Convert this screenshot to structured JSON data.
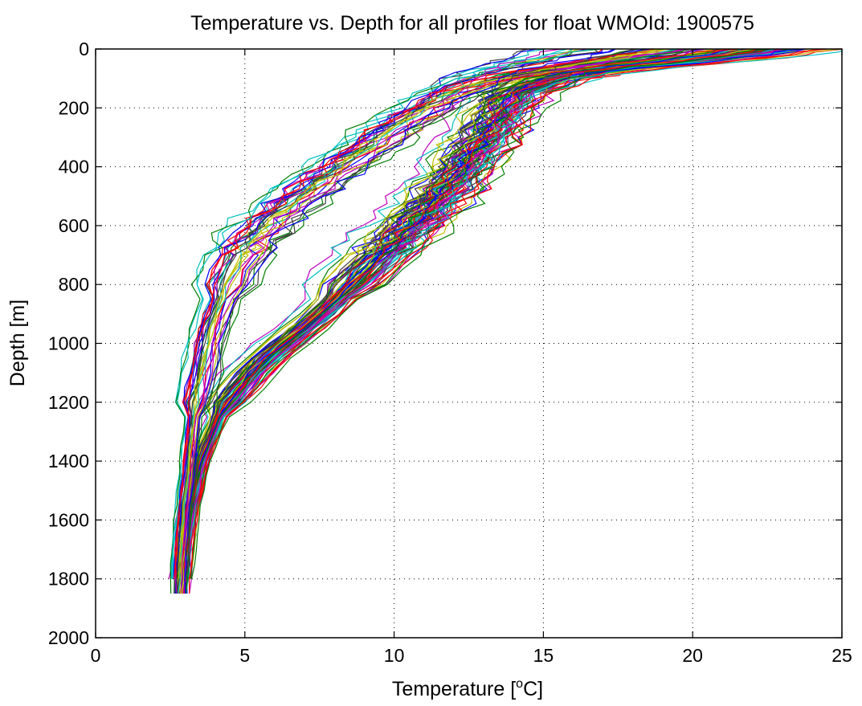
{
  "chart_data": {
    "type": "line",
    "title": "Temperature vs. Depth for all profiles for float WMOId: 1900575",
    "xlabel_main": "Temperature [",
    "xlabel_sup": "o",
    "xlabel_tail": "C]",
    "ylabel": "Depth [m]",
    "xlim": [
      0,
      25
    ],
    "ylim": [
      0,
      2000
    ],
    "y_reversed": true,
    "grid": true,
    "x_ticks": [
      0,
      5,
      10,
      15,
      20,
      25
    ],
    "y_ticks": [
      0,
      200,
      400,
      600,
      800,
      1000,
      1200,
      1400,
      1600,
      1800,
      2000
    ],
    "palette": [
      "#0000ff",
      "#007f00",
      "#ff0000",
      "#00bfbf",
      "#bf00bf",
      "#bfbf00",
      "#3f3f3f"
    ],
    "profile_count": 120,
    "profile_groups": [
      {
        "weight": 0.72,
        "depth": [
          0,
          20,
          40,
          60,
          80,
          100,
          150,
          200,
          250,
          300,
          350,
          400,
          450,
          500,
          550,
          600,
          650,
          700,
          750,
          800,
          850,
          900,
          950,
          1000,
          1050,
          1100,
          1150,
          1200,
          1250,
          1300,
          1350,
          1400,
          1450,
          1500,
          1550,
          1600,
          1650,
          1700,
          1750,
          1800,
          1850
        ],
        "temperature": [
          22.0,
          21.0,
          19.5,
          17.5,
          16.0,
          15.2,
          14.0,
          13.6,
          13.3,
          13.0,
          12.6,
          12.3,
          11.9,
          11.5,
          11.0,
          10.5,
          10.0,
          9.5,
          9.0,
          8.5,
          8.0,
          7.5,
          6.9,
          6.3,
          5.7,
          5.2,
          4.8,
          4.4,
          4.1,
          3.9,
          3.7,
          3.5,
          3.4,
          3.3,
          3.2,
          3.1,
          3.05,
          3.0,
          2.95,
          2.9,
          2.88
        ]
      },
      {
        "weight": 0.28,
        "depth": [
          0,
          20,
          40,
          60,
          80,
          100,
          150,
          200,
          250,
          300,
          350,
          400,
          450,
          500,
          550,
          600,
          650,
          700,
          750,
          800,
          850,
          900,
          950,
          1000,
          1050,
          1100,
          1150,
          1200,
          1250,
          1300,
          1350,
          1400,
          1450,
          1500,
          1550,
          1600,
          1650,
          1700,
          1750,
          1800,
          1850
        ],
        "temperature": [
          18.0,
          17.0,
          16.0,
          15.0,
          14.0,
          13.2,
          12.0,
          11.2,
          10.4,
          9.7,
          9.0,
          8.3,
          7.6,
          7.0,
          6.4,
          5.8,
          5.3,
          5.0,
          4.7,
          4.5,
          4.3,
          4.1,
          3.9,
          3.8,
          3.7,
          3.6,
          3.5,
          3.4,
          3.3,
          3.25,
          3.2,
          3.15,
          3.1,
          3.05,
          3.0,
          2.95,
          2.9,
          2.87,
          2.85,
          2.83,
          2.82
        ]
      }
    ]
  }
}
